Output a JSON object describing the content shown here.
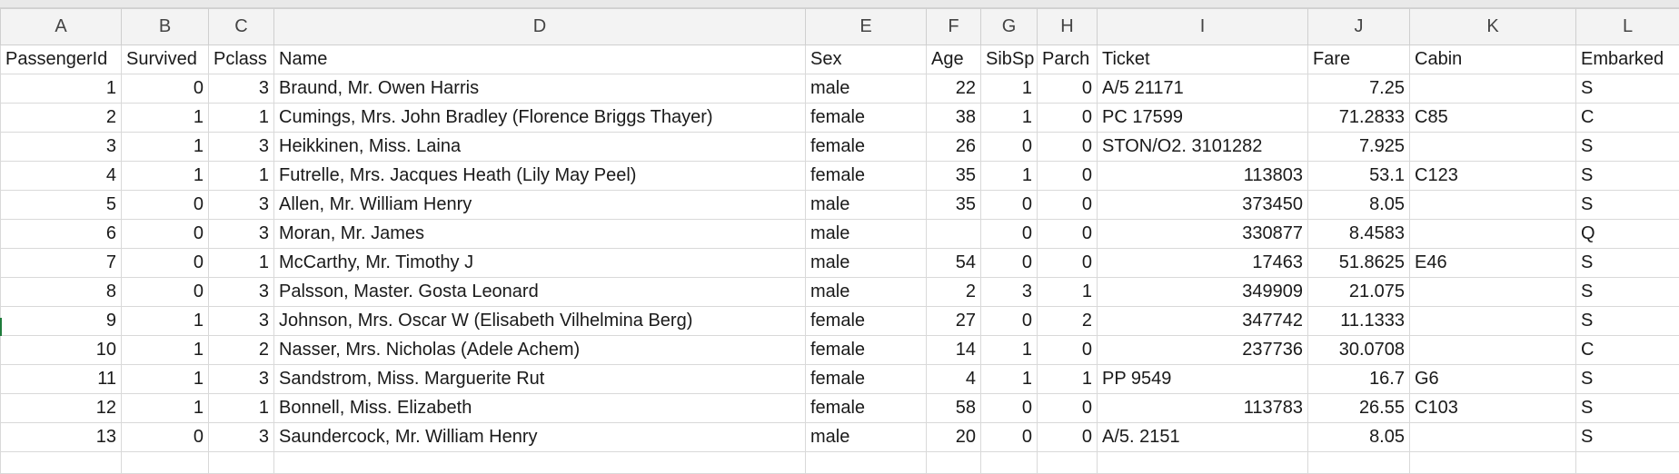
{
  "sheet": {
    "column_letters": [
      "A",
      "B",
      "C",
      "D",
      "E",
      "F",
      "G",
      "H",
      "I",
      "J",
      "K",
      "L"
    ],
    "rows": [
      [
        "PassengerId",
        "Survived",
        "Pclass",
        "Name",
        "Sex",
        "Age",
        "SibSp",
        "Parch",
        "Ticket",
        "Fare",
        "Cabin",
        "Embarked"
      ],
      [
        "1",
        "0",
        "3",
        "Braund, Mr. Owen Harris",
        "male",
        "22",
        "1",
        "0",
        "A/5 21171",
        "7.25",
        "",
        "S"
      ],
      [
        "2",
        "1",
        "1",
        "Cumings, Mrs. John Bradley (Florence Briggs Thayer)",
        "female",
        "38",
        "1",
        "0",
        "PC 17599",
        "71.2833",
        "C85",
        "C"
      ],
      [
        "3",
        "1",
        "3",
        "Heikkinen, Miss. Laina",
        "female",
        "26",
        "0",
        "0",
        "STON/O2. 3101282",
        "7.925",
        "",
        "S"
      ],
      [
        "4",
        "1",
        "1",
        "Futrelle, Mrs. Jacques Heath (Lily May Peel)",
        "female",
        "35",
        "1",
        "0",
        "113803",
        "53.1",
        "C123",
        "S"
      ],
      [
        "5",
        "0",
        "3",
        "Allen, Mr. William Henry",
        "male",
        "35",
        "0",
        "0",
        "373450",
        "8.05",
        "",
        "S"
      ],
      [
        "6",
        "0",
        "3",
        "Moran, Mr. James",
        "male",
        "",
        "0",
        "0",
        "330877",
        "8.4583",
        "",
        "Q"
      ],
      [
        "7",
        "0",
        "1",
        "McCarthy, Mr. Timothy J",
        "male",
        "54",
        "0",
        "0",
        "17463",
        "51.8625",
        "E46",
        "S"
      ],
      [
        "8",
        "0",
        "3",
        "Palsson, Master. Gosta Leonard",
        "male",
        "2",
        "3",
        "1",
        "349909",
        "21.075",
        "",
        "S"
      ],
      [
        "9",
        "1",
        "3",
        "Johnson, Mrs. Oscar W (Elisabeth Vilhelmina Berg)",
        "female",
        "27",
        "0",
        "2",
        "347742",
        "11.1333",
        "",
        "S"
      ],
      [
        "10",
        "1",
        "2",
        "Nasser, Mrs. Nicholas (Adele Achem)",
        "female",
        "14",
        "1",
        "0",
        "237736",
        "30.0708",
        "",
        "C"
      ],
      [
        "11",
        "1",
        "3",
        "Sandstrom, Miss. Marguerite Rut",
        "female",
        "4",
        "1",
        "1",
        "PP 9549",
        "16.7",
        "G6",
        "S"
      ],
      [
        "12",
        "1",
        "1",
        "Bonnell, Miss. Elizabeth",
        "female",
        "58",
        "0",
        "0",
        "113783",
        "26.55",
        "C103",
        "S"
      ],
      [
        "13",
        "0",
        "3",
        "Saundercock, Mr. William Henry",
        "male",
        "20",
        "0",
        "0",
        "A/5. 2151",
        "8.05",
        "",
        "S"
      ],
      [
        "",
        "",
        "",
        "",
        "",
        "",
        "",
        "",
        "",
        "",
        "",
        ""
      ]
    ]
  }
}
